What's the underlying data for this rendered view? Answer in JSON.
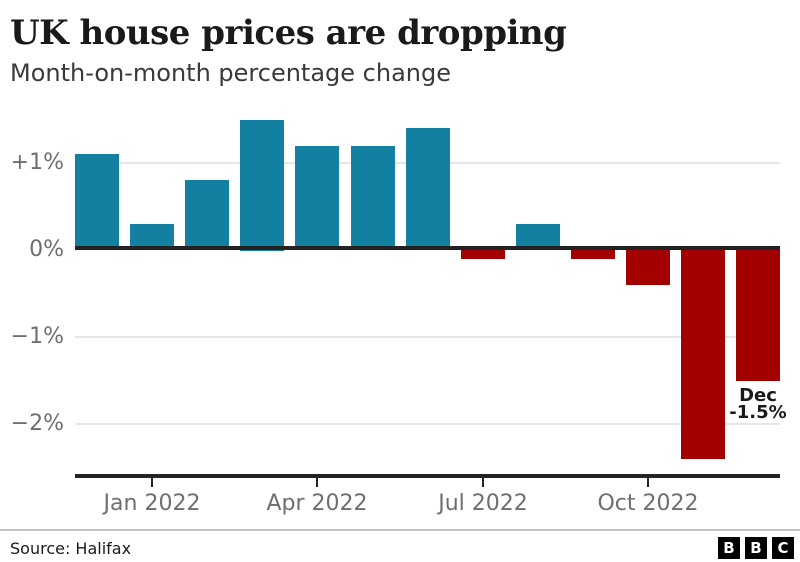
{
  "header": {
    "title": "UK house prices are dropping",
    "subtitle": "Month-on-month percentage change"
  },
  "chart_data": {
    "type": "bar",
    "title": "UK house prices are dropping",
    "subtitle": "Month-on-month percentage change",
    "categories": [
      "Dec 2021",
      "Jan 2022",
      "Feb 2022",
      "Mar 2022",
      "Apr 2022",
      "May 2022",
      "Jun 2022",
      "Jul 2022",
      "Aug 2022",
      "Sep 2022",
      "Oct 2022",
      "Nov 2022",
      "Dec 2022"
    ],
    "values": [
      1.1,
      0.3,
      0.8,
      1.5,
      1.2,
      1.2,
      1.4,
      -0.1,
      0.3,
      -0.1,
      -0.4,
      -2.4,
      -1.5
    ],
    "unit": "%",
    "ylim": [
      -2.6,
      1.6
    ],
    "grid": true,
    "legend": "none",
    "y_axis": {
      "ticks": [
        {
          "label": "+1%",
          "value": 1
        },
        {
          "label": "0%",
          "value": 0
        },
        {
          "label": "−1%",
          "value": -1
        },
        {
          "label": "−2%",
          "value": -2
        }
      ]
    },
    "x_axis": {
      "ticks": [
        {
          "label": "Jan 2022",
          "index": 1
        },
        {
          "label": "Apr 2022",
          "index": 4
        },
        {
          "label": "Jul 2022",
          "index": 7
        },
        {
          "label": "Oct 2022",
          "index": 10
        }
      ]
    },
    "annotation": {
      "bar_index": 12,
      "lines": [
        "Dec",
        "-1.5%"
      ]
    },
    "colors": {
      "positive_bar": "#1380a1",
      "negative_bar": "#a30000",
      "axis_line": "#222222",
      "gridline": "#e6e6e6",
      "tick_label": "#6e6e73",
      "annotation_text": "#1a1a1a"
    }
  },
  "footer": {
    "source": "Source: Halifax",
    "logo_letters": [
      "B",
      "B",
      "C"
    ]
  }
}
